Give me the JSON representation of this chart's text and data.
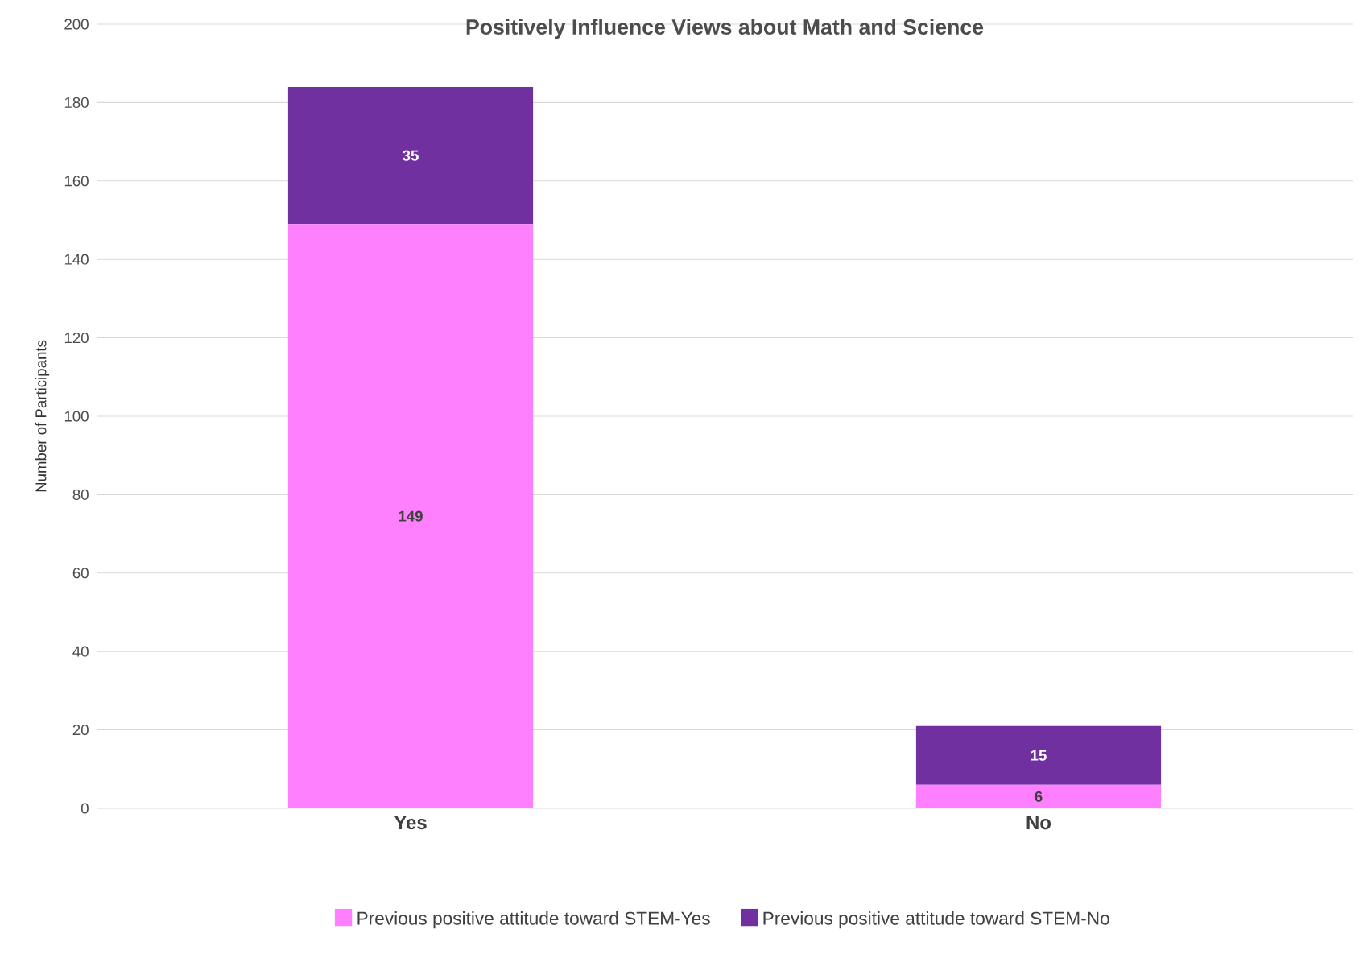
{
  "chart_data": {
    "type": "bar",
    "title": "Positively Influence Views about Math and Science",
    "ylabel": "Number of Participants",
    "categories": [
      "Yes",
      "No"
    ],
    "stacked": true,
    "data_labels": true,
    "grid": "y",
    "legend": "bottom",
    "ylim": [
      0,
      200
    ],
    "yticks": [
      0,
      20,
      40,
      60,
      80,
      100,
      120,
      140,
      160,
      180,
      200
    ],
    "series": [
      {
        "name": "Previous positive attitude toward STEM-Yes",
        "color": "#ff80ff",
        "values": [
          149,
          6
        ]
      },
      {
        "name": "Previous positive attitude toward STEM-No",
        "color": "#7030a0",
        "values": [
          35,
          15
        ]
      }
    ]
  }
}
